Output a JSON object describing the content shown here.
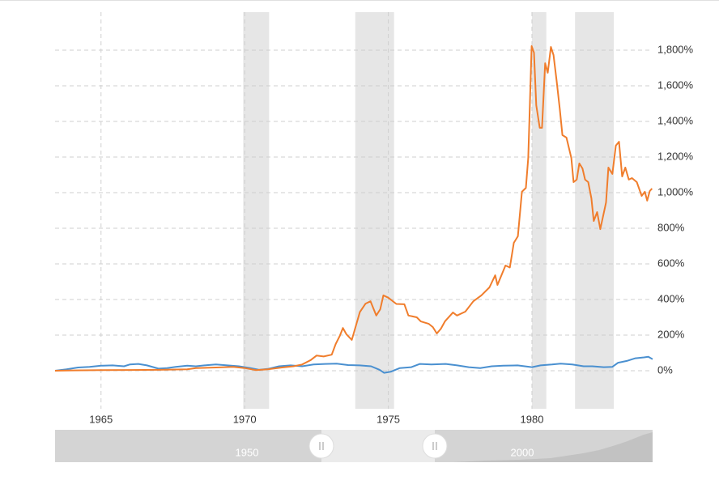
{
  "chart_data": {
    "type": "line",
    "xlim": [
      1963.4,
      1984.2
    ],
    "xticks": [
      1965,
      1970,
      1975,
      1980
    ],
    "ylim": [
      -200,
      2000
    ],
    "yticks": [
      {
        "value": 0,
        "label": "0%"
      },
      {
        "value": 200,
        "label": "200%"
      },
      {
        "value": 400,
        "label": "400%"
      },
      {
        "value": 600,
        "label": "600%"
      },
      {
        "value": 800,
        "label": "800%"
      },
      {
        "value": 1000,
        "label": "1,000%"
      },
      {
        "value": 1200,
        "label": "1,200%"
      },
      {
        "value": 1400,
        "label": "1,400%"
      },
      {
        "value": 1600,
        "label": "1,600%"
      },
      {
        "value": 1800,
        "label": "1,800%"
      }
    ],
    "grid": true,
    "recessions": [
      [
        1969.95,
        1970.85
      ],
      [
        1973.85,
        1975.2
      ],
      [
        1980.0,
        1980.5
      ],
      [
        1981.5,
        1982.85
      ]
    ],
    "series": [
      {
        "color": "#4a90d0",
        "x": [
          1963.4,
          1963.8,
          1964.2,
          1964.6,
          1965,
          1965.4,
          1965.8,
          1966,
          1966.3,
          1966.6,
          1967,
          1967.3,
          1967.6,
          1968,
          1968.3,
          1968.6,
          1969,
          1969.4,
          1969.8,
          1970.2,
          1970.5,
          1970.8,
          1971.2,
          1971.6,
          1972,
          1972.4,
          1972.8,
          1973.2,
          1973.6,
          1974,
          1974.4,
          1974.7,
          1974.85,
          1975.1,
          1975.4,
          1975.8,
          1976.1,
          1976.5,
          1977,
          1977.4,
          1977.8,
          1978.2,
          1978.6,
          1979,
          1979.5,
          1980,
          1980.3,
          1980.7,
          1981,
          1981.4,
          1981.8,
          1982.1,
          1982.5,
          1982.8,
          1983,
          1983.3,
          1983.6,
          1983.9,
          1984.05,
          1984.2
        ],
        "values": [
          0,
          8,
          18,
          22,
          28,
          30,
          25,
          35,
          38,
          30,
          12,
          15,
          22,
          28,
          25,
          30,
          35,
          30,
          25,
          15,
          5,
          10,
          25,
          30,
          25,
          35,
          38,
          40,
          32,
          30,
          25,
          5,
          -12,
          -5,
          15,
          20,
          38,
          35,
          38,
          30,
          20,
          15,
          25,
          28,
          30,
          20,
          30,
          35,
          40,
          35,
          25,
          25,
          20,
          22,
          45,
          55,
          70,
          75,
          78,
          65
        ]
      },
      {
        "color": "#f07d2c",
        "x": [
          1963.4,
          1964,
          1965,
          1966,
          1967,
          1968,
          1968.3,
          1969,
          1969.6,
          1970,
          1970.4,
          1970.8,
          1971.3,
          1971.7,
          1972,
          1972.3,
          1972.5,
          1972.75,
          1973.03,
          1973.17,
          1973.31,
          1973.42,
          1973.54,
          1973.73,
          1974.01,
          1974.21,
          1974.38,
          1974.58,
          1974.72,
          1974.83,
          1975.0,
          1975.28,
          1975.56,
          1975.7,
          1975.99,
          1976.13,
          1976.41,
          1976.55,
          1976.69,
          1976.83,
          1976.97,
          1977.25,
          1977.39,
          1977.68,
          1977.96,
          1978.24,
          1978.52,
          1978.72,
          1978.8,
          1979.08,
          1979.23,
          1979.37,
          1979.51,
          1979.65,
          1979.79,
          1979.87,
          1979.99,
          1980.07,
          1980.15,
          1980.27,
          1980.35,
          1980.46,
          1980.55,
          1980.66,
          1980.75,
          1980.86,
          1980.97,
          1981.06,
          1981.2,
          1981.37,
          1981.45,
          1981.56,
          1981.65,
          1981.76,
          1981.85,
          1981.96,
          1982.07,
          1982.15,
          1982.27,
          1982.38,
          1982.58,
          1982.66,
          1982.8,
          1982.92,
          1983.03,
          1983.14,
          1983.25,
          1983.37,
          1983.48,
          1983.65,
          1983.82,
          1983.93,
          1984.01,
          1984.1,
          1984.18
        ],
        "values": [
          0,
          2,
          3,
          4,
          5,
          8,
          15,
          18,
          22,
          15,
          3,
          8,
          18,
          25,
          35,
          60,
          85,
          80,
          90,
          150,
          195,
          240,
          205,
          173,
          330,
          377,
          390,
          310,
          345,
          423,
          410,
          375,
          373,
          310,
          300,
          277,
          263,
          245,
          209,
          236,
          277,
          327,
          310,
          332,
          390,
          423,
          468,
          536,
          482,
          591,
          580,
          718,
          755,
          1005,
          1027,
          1195,
          1823,
          1786,
          1491,
          1364,
          1364,
          1727,
          1673,
          1818,
          1773,
          1627,
          1468,
          1323,
          1309,
          1195,
          1059,
          1073,
          1164,
          1136,
          1073,
          1059,
          968,
          841,
          891,
          795,
          945,
          1141,
          1105,
          1264,
          1286,
          1091,
          1141,
          1073,
          1082,
          1059,
          982,
          1005,
          955,
          1009,
          1023
        ]
      }
    ],
    "navigator": {
      "labels": [
        "1950",
        "2000"
      ]
    }
  }
}
